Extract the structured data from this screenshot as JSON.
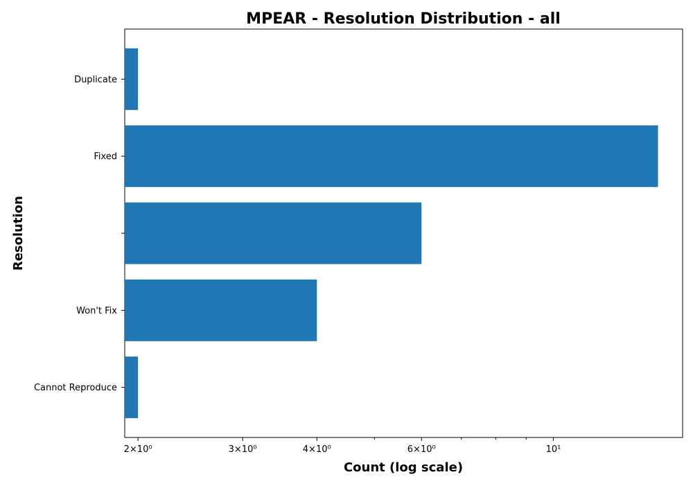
{
  "chart_data": {
    "type": "bar",
    "orientation": "horizontal",
    "title": "MPEAR - Resolution Distribution - all",
    "xlabel": "Count (log scale)",
    "ylabel": "Resolution",
    "x_scale": "log",
    "xlim": [
      1.9,
      16.5
    ],
    "categories": [
      "Duplicate",
      "Fixed",
      "",
      "Won't Fix",
      "Cannot Reproduce"
    ],
    "values": [
      2,
      15,
      6,
      4,
      2
    ],
    "x_major_ticks": [
      {
        "value": 2,
        "label": "2×10⁰"
      },
      {
        "value": 3,
        "label": "3×10⁰"
      },
      {
        "value": 4,
        "label": "4×10⁰"
      },
      {
        "value": 6,
        "label": "6×10⁰"
      },
      {
        "value": 10,
        "label": "10¹"
      }
    ],
    "x_minor_ticks": [
      5,
      7,
      8,
      9
    ],
    "bar_color": "#1f77b4",
    "grid": false,
    "legend": "none"
  }
}
